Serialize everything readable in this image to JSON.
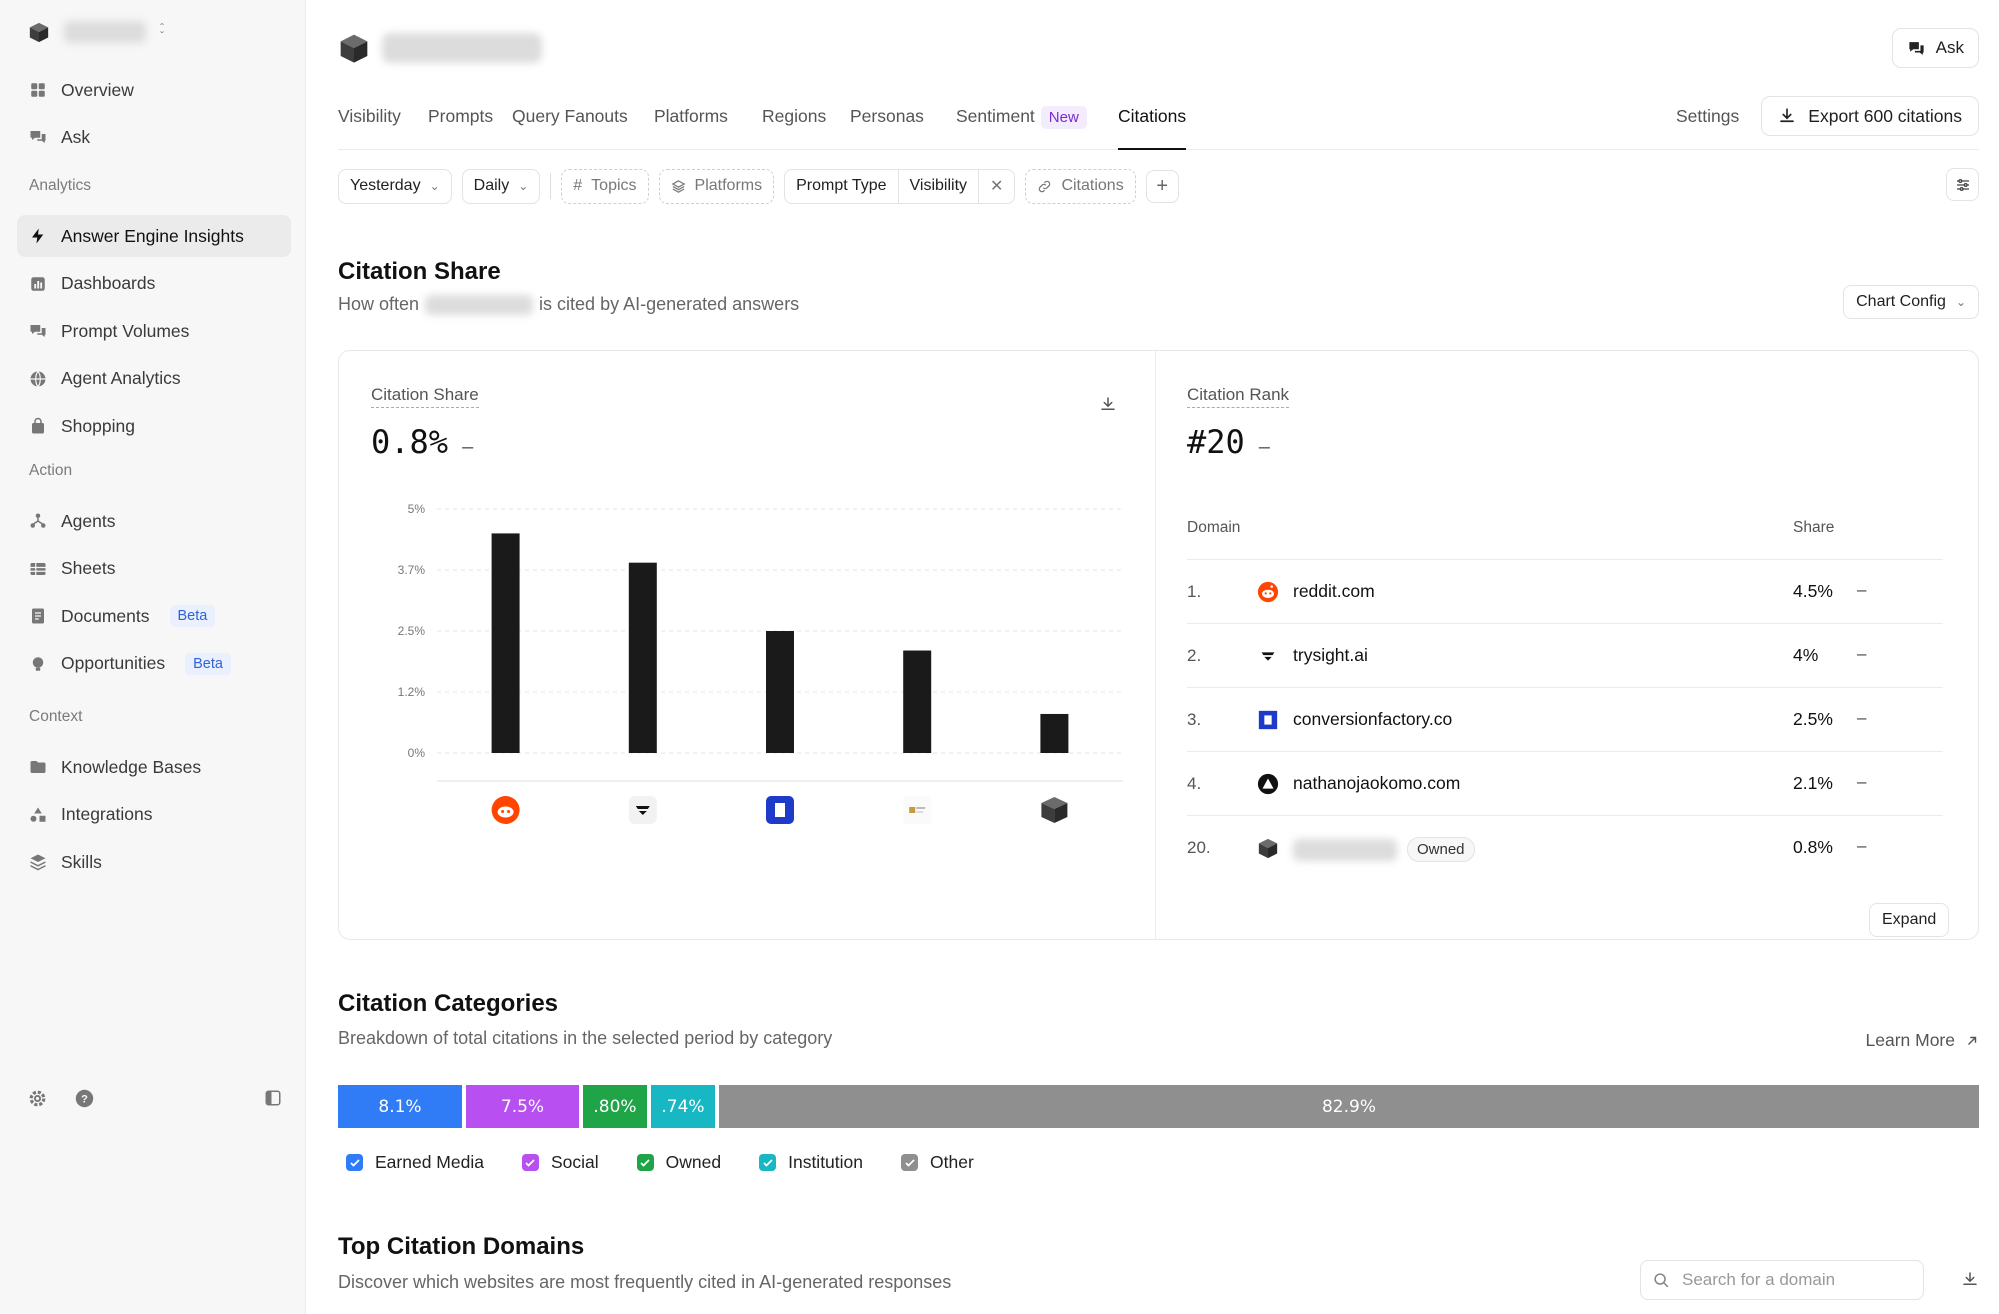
{
  "sidebar": {
    "workspace_blurred": true,
    "nav_top": [
      {
        "label": "Overview",
        "icon": "grid-icon"
      },
      {
        "label": "Ask",
        "icon": "chat-icon"
      }
    ],
    "sections": [
      {
        "label": "Analytics",
        "items": [
          {
            "label": "Answer Engine Insights",
            "icon": "bolt-icon",
            "active": true
          },
          {
            "label": "Dashboards",
            "icon": "chart-icon"
          },
          {
            "label": "Prompt Volumes",
            "icon": "chat-icon"
          },
          {
            "label": "Agent Analytics",
            "icon": "globe-icon"
          },
          {
            "label": "Shopping",
            "icon": "bag-icon"
          }
        ]
      },
      {
        "label": "Action",
        "items": [
          {
            "label": "Agents",
            "icon": "agents-icon"
          },
          {
            "label": "Sheets",
            "icon": "table-icon"
          },
          {
            "label": "Documents",
            "icon": "doc-icon",
            "badge": "Beta"
          },
          {
            "label": "Opportunities",
            "icon": "bulb-icon",
            "badge": "Beta"
          }
        ]
      },
      {
        "label": "Context",
        "items": [
          {
            "label": "Knowledge Bases",
            "icon": "folder-icon"
          },
          {
            "label": "Integrations",
            "icon": "shapes-icon"
          },
          {
            "label": "Skills",
            "icon": "layers-icon"
          }
        ]
      }
    ]
  },
  "header": {
    "ask_label": "Ask",
    "tabs": [
      "Visibility",
      "Prompts",
      "Query Fanouts",
      "Platforms",
      "Regions",
      "Personas",
      "Sentiment",
      "Citations"
    ],
    "new_badge": "New",
    "active_tab": "Citations",
    "settings_label": "Settings",
    "export_label": "Export 600 citations"
  },
  "filters": {
    "date": "Yesterday",
    "granularity": "Daily",
    "topics": "Topics",
    "platforms": "Platforms",
    "prompt_type": "Prompt Type",
    "visibility": "Visibility",
    "citations": "Citations"
  },
  "citation_share_section": {
    "title": "Citation Share",
    "subtitle_pre": "How often",
    "subtitle_post": "is cited by AI-generated answers",
    "chart_config_label": "Chart Config"
  },
  "share_card": {
    "label": "Citation Share",
    "value": "0.8%",
    "delta": "–"
  },
  "rank_card": {
    "label": "Citation Rank",
    "value": "#20",
    "delta": "–",
    "col_domain": "Domain",
    "col_share": "Share",
    "rows": [
      {
        "rank": "1.",
        "domain": "reddit.com",
        "share": "4.5%",
        "delta": "–",
        "icon": "reddit-icon"
      },
      {
        "rank": "2.",
        "domain": "trysight.ai",
        "share": "4%",
        "delta": "–",
        "icon": "trysight-icon"
      },
      {
        "rank": "3.",
        "domain": "conversionfactory.co",
        "share": "2.5%",
        "delta": "–",
        "icon": "conversionfactory-icon"
      },
      {
        "rank": "4.",
        "domain": "nathanojaokomo.com",
        "share": "2.1%",
        "delta": "–",
        "icon": "triangle-logo-icon"
      },
      {
        "rank": "20.",
        "domain": "",
        "share": "0.8%",
        "delta": "–",
        "icon": "cube-icon",
        "tag": "Owned"
      }
    ],
    "expand_label": "Expand"
  },
  "chart_data": {
    "type": "bar",
    "categories": [
      "reddit.com",
      "trysight.ai",
      "conversionfactory.co",
      "nathanojaokomo.com",
      "owned"
    ],
    "values": [
      4.5,
      3.9,
      2.5,
      2.1,
      0.8
    ],
    "y_ticks": [
      "0%",
      "1.2%",
      "2.5%",
      "3.7%",
      "5%"
    ],
    "ylim": [
      0,
      5
    ],
    "bar_color": "#1a1a1a",
    "grid": true
  },
  "categories_section": {
    "title": "Citation Categories",
    "subtitle": "Breakdown of total citations in the selected period by category",
    "learn_more": "Learn More",
    "segments": [
      {
        "name": "Earned Media",
        "value": 8.1,
        "label": "8.1%",
        "color": "#2f7cf6"
      },
      {
        "name": "Social",
        "value": 7.5,
        "label": "7.5%",
        "color": "#b84ff0"
      },
      {
        "name": "Owned",
        "value": 0.8,
        "label": ".80%",
        "color": "#1fa448"
      },
      {
        "name": "Institution",
        "value": 0.74,
        "label": ".74%",
        "color": "#17b8c4"
      },
      {
        "name": "Other",
        "value": 82.9,
        "label": "82.9%",
        "color": "#8f8f8f"
      }
    ]
  },
  "domains_section": {
    "title": "Top Citation Domains",
    "subtitle": "Discover which websites are most frequently cited in AI-generated responses",
    "search_placeholder": "Search for a domain"
  }
}
